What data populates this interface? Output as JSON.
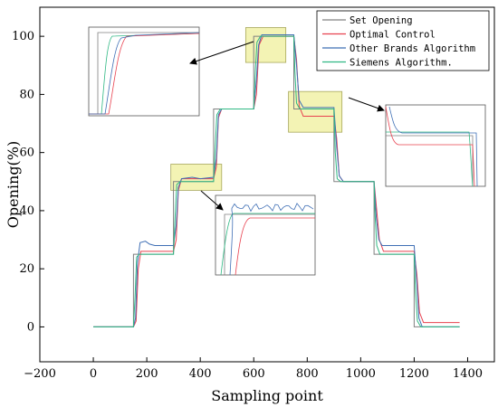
{
  "chart_data": {
    "type": "line",
    "xlabel": "Sampling point",
    "ylabel": "Opening(%)",
    "xlim": [
      -200,
      1500
    ],
    "ylim": [
      -12,
      110
    ],
    "xticks": [
      -200,
      0,
      200,
      400,
      600,
      800,
      1000,
      1200,
      1400
    ],
    "yticks": [
      0,
      20,
      40,
      60,
      80,
      100
    ],
    "legend_position": "top-right",
    "series": [
      {
        "name": "Set Opening",
        "color": "#808080",
        "points": [
          [
            0,
            0
          ],
          [
            150,
            0
          ],
          [
            150,
            25
          ],
          [
            300,
            25
          ],
          [
            300,
            50
          ],
          [
            450,
            50
          ],
          [
            450,
            75
          ],
          [
            600,
            75
          ],
          [
            600,
            100
          ],
          [
            750,
            100
          ],
          [
            750,
            75
          ],
          [
            900,
            75
          ],
          [
            900,
            50
          ],
          [
            1050,
            50
          ],
          [
            1050,
            25
          ],
          [
            1200,
            25
          ],
          [
            1200,
            0
          ],
          [
            1370,
            0
          ]
        ]
      },
      {
        "name": "Optimal Control",
        "color": "#e8414f",
        "points": [
          [
            0,
            0
          ],
          [
            150,
            0
          ],
          [
            160,
            2
          ],
          [
            168,
            20
          ],
          [
            178,
            26
          ],
          [
            300,
            26
          ],
          [
            310,
            30
          ],
          [
            318,
            47
          ],
          [
            330,
            51
          ],
          [
            450,
            51
          ],
          [
            460,
            55
          ],
          [
            468,
            72
          ],
          [
            480,
            75
          ],
          [
            600,
            75
          ],
          [
            610,
            80
          ],
          [
            620,
            97
          ],
          [
            635,
            100
          ],
          [
            750,
            100
          ],
          [
            760,
            92
          ],
          [
            770,
            76
          ],
          [
            785,
            72.5
          ],
          [
            900,
            72.5
          ],
          [
            910,
            65
          ],
          [
            920,
            52
          ],
          [
            935,
            50
          ],
          [
            1050,
            50
          ],
          [
            1060,
            40
          ],
          [
            1070,
            30
          ],
          [
            1085,
            26
          ],
          [
            1200,
            26
          ],
          [
            1210,
            18
          ],
          [
            1220,
            5
          ],
          [
            1235,
            1.5
          ],
          [
            1370,
            1.5
          ]
        ]
      },
      {
        "name": "Other Brands Algorithm",
        "color": "#3f6fb5",
        "points": [
          [
            0,
            0
          ],
          [
            150,
            0
          ],
          [
            158,
            3
          ],
          [
            165,
            22
          ],
          [
            175,
            29
          ],
          [
            195,
            29.5
          ],
          [
            210,
            28.5
          ],
          [
            230,
            28
          ],
          [
            300,
            28
          ],
          [
            310,
            35
          ],
          [
            318,
            48
          ],
          [
            330,
            51
          ],
          [
            370,
            51.5
          ],
          [
            400,
            51
          ],
          [
            450,
            51.5
          ],
          [
            460,
            58
          ],
          [
            468,
            73
          ],
          [
            480,
            75
          ],
          [
            600,
            75
          ],
          [
            610,
            85
          ],
          [
            618,
            97
          ],
          [
            630,
            100.5
          ],
          [
            750,
            100.5
          ],
          [
            760,
            90
          ],
          [
            770,
            78
          ],
          [
            785,
            75.5
          ],
          [
            900,
            75.5
          ],
          [
            910,
            62
          ],
          [
            920,
            52
          ],
          [
            935,
            50
          ],
          [
            1050,
            50
          ],
          [
            1058,
            38
          ],
          [
            1068,
            30
          ],
          [
            1080,
            28
          ],
          [
            1200,
            28
          ],
          [
            1210,
            15
          ],
          [
            1218,
            3
          ],
          [
            1230,
            0
          ],
          [
            1370,
            0
          ]
        ]
      },
      {
        "name": "Siemens Algorithm.",
        "color": "#2fb883",
        "points": [
          [
            0,
            0
          ],
          [
            150,
            0
          ],
          [
            156,
            10
          ],
          [
            162,
            24
          ],
          [
            172,
            25
          ],
          [
            300,
            25
          ],
          [
            306,
            38
          ],
          [
            312,
            49
          ],
          [
            325,
            50
          ],
          [
            450,
            50
          ],
          [
            456,
            62
          ],
          [
            462,
            73
          ],
          [
            475,
            75
          ],
          [
            600,
            75
          ],
          [
            606,
            88
          ],
          [
            612,
            98
          ],
          [
            625,
            100
          ],
          [
            750,
            100
          ],
          [
            754,
            88
          ],
          [
            760,
            77
          ],
          [
            772,
            75
          ],
          [
            900,
            75
          ],
          [
            905,
            60
          ],
          [
            912,
            51
          ],
          [
            925,
            50
          ],
          [
            1050,
            50
          ],
          [
            1054,
            38
          ],
          [
            1060,
            28
          ],
          [
            1072,
            25
          ],
          [
            1200,
            25
          ],
          [
            1205,
            12
          ],
          [
            1212,
            2
          ],
          [
            1225,
            0
          ],
          [
            1370,
            0
          ]
        ]
      }
    ]
  }
}
